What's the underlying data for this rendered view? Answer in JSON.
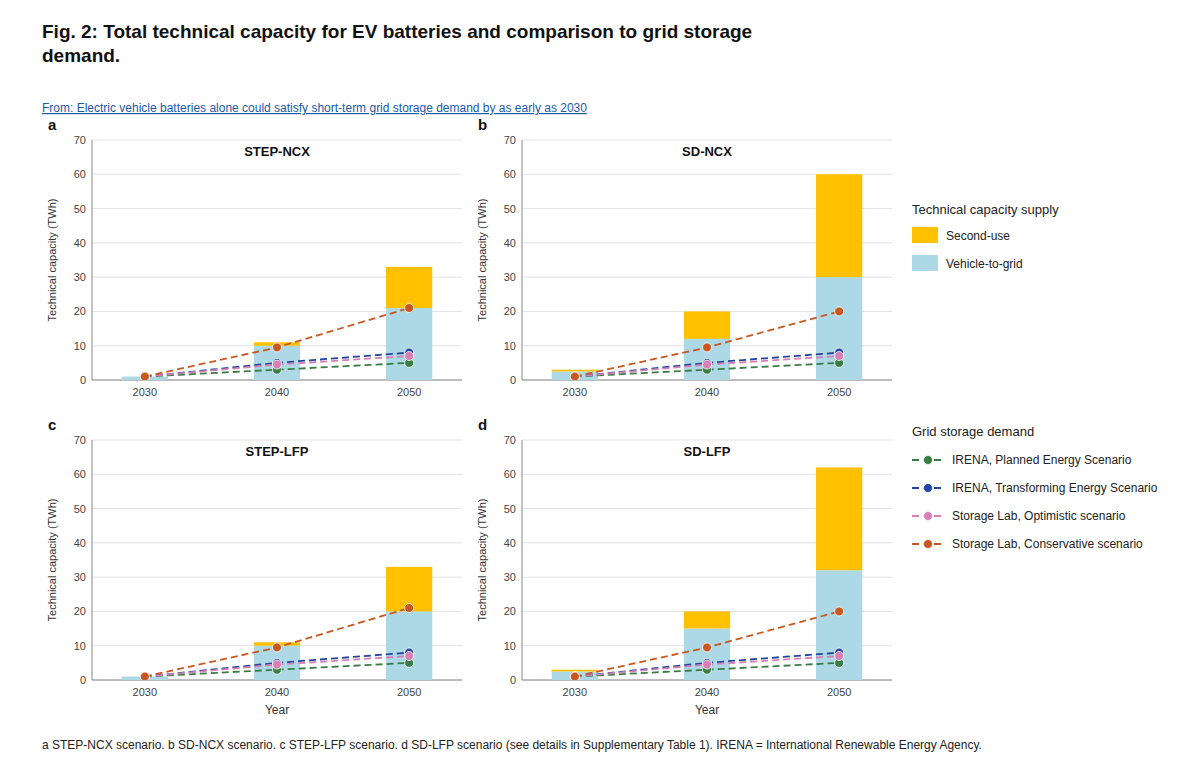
{
  "title": "Fig. 2: Total technical capacity for EV batteries and comparison to grid storage\ndemand.",
  "subtitle": "From: Electric vehicle batteries alone could satisfy short-term grid storage demand by as early as 2030",
  "annotations": [
    "Technical capacity supply",
    "Grid storage demand",
    "a STEP-NCX scenario. b SD-NCX scenario. c STEP-LFP scenario. d SD-LFP scenario (see details in Supplementary Table 1). IRENA = International Renewable Energy Agency."
  ],
  "chart_data": [
    {
      "type": "bar",
      "title": "STEP-NCX",
      "annotations": [
        "a"
      ],
      "stacked": true,
      "grid": true,
      "y_label": "Technical capacity (TWh)",
      "x": [
        2030,
        2040,
        2050
      ],
      "xlim": [
        2026,
        2054
      ],
      "xticks": [
        2030,
        2040,
        2050
      ],
      "ylim": [
        0,
        70
      ],
      "yticks": [
        0,
        10,
        20,
        30,
        40,
        50,
        60,
        70
      ],
      "series": [
        {
          "name": "Vehicle-to-grid",
          "type": "bar",
          "color": "#ADD8E6",
          "values": [
            1.0,
            10.0,
            21.0
          ]
        },
        {
          "name": "Second-use",
          "type": "bar",
          "color": "#FFC000",
          "values": [
            0.0,
            1.0,
            12.0
          ]
        },
        {
          "name": "IRENA, Planned Energy Scenario",
          "type": "line",
          "line_style": "dashed",
          "marker": "circle",
          "color": "#3A7D44",
          "values": [
            1.0,
            3.0,
            5.0
          ]
        },
        {
          "name": "IRENA, Transforming Energy Scenario",
          "type": "line",
          "line_style": "dashed",
          "marker": "circle",
          "color": "#2145A0",
          "values": [
            1.0,
            5.0,
            8.0
          ]
        },
        {
          "name": "Storage Lab, Optimistic scenario",
          "type": "line",
          "line_style": "dashed",
          "marker": "circle",
          "color": "#D87FB5",
          "values": [
            1.0,
            4.5,
            7.0
          ]
        },
        {
          "name": "Storage Lab, Conservative scenario",
          "type": "line",
          "line_style": "dashed",
          "marker": "circle",
          "color": "#C85820",
          "values": [
            1.0,
            9.5,
            21.0
          ]
        }
      ]
    },
    {
      "type": "bar",
      "title": "SD-NCX",
      "annotations": [
        "b"
      ],
      "stacked": true,
      "grid": true,
      "y_label": "Technical capacity (TWh)",
      "x": [
        2030,
        2040,
        2050
      ],
      "xlim": [
        2026,
        2054
      ],
      "xticks": [
        2030,
        2040,
        2050
      ],
      "ylim": [
        0,
        70
      ],
      "yticks": [
        0,
        10,
        20,
        30,
        40,
        50,
        60,
        70
      ],
      "series": [
        {
          "type": "bar",
          "color": "#ADD8E6",
          "values": [
            2.5,
            12.0,
            30.0
          ]
        },
        {
          "type": "bar",
          "color": "#FFC000",
          "values": [
            0.5,
            8.0,
            30.0
          ]
        },
        {
          "type": "line",
          "line_style": "dashed",
          "marker": "circle",
          "color": "#3A7D44",
          "values": [
            1.0,
            3.0,
            5.0
          ]
        },
        {
          "type": "line",
          "line_style": "dashed",
          "marker": "circle",
          "color": "#2145A0",
          "values": [
            1.0,
            5.0,
            8.0
          ]
        },
        {
          "type": "line",
          "line_style": "dashed",
          "marker": "circle",
          "color": "#D87FB5",
          "values": [
            1.0,
            4.5,
            7.0
          ]
        },
        {
          "type": "line",
          "line_style": "dashed",
          "marker": "circle",
          "color": "#C85820",
          "values": [
            1.0,
            9.5,
            20.0
          ]
        }
      ]
    },
    {
      "type": "bar",
      "title": "STEP-LFP",
      "annotations": [
        "c"
      ],
      "stacked": true,
      "grid": true,
      "y_label": "Technical capacity (TWh)",
      "x_label": "Year",
      "x": [
        2030,
        2040,
        2050
      ],
      "xlim": [
        2026,
        2054
      ],
      "xticks": [
        2030,
        2040,
        2050
      ],
      "ylim": [
        0,
        70
      ],
      "yticks": [
        0,
        10,
        20,
        30,
        40,
        50,
        60,
        70
      ],
      "series": [
        {
          "type": "bar",
          "color": "#ADD8E6",
          "values": [
            1.0,
            10.0,
            20.0
          ]
        },
        {
          "type": "bar",
          "color": "#FFC000",
          "values": [
            0.0,
            1.0,
            13.0
          ]
        },
        {
          "type": "line",
          "line_style": "dashed",
          "marker": "circle",
          "color": "#3A7D44",
          "values": [
            1.0,
            3.0,
            5.0
          ]
        },
        {
          "type": "line",
          "line_style": "dashed",
          "marker": "circle",
          "color": "#2145A0",
          "values": [
            1.0,
            5.0,
            8.0
          ]
        },
        {
          "type": "line",
          "line_style": "dashed",
          "marker": "circle",
          "color": "#D87FB5",
          "values": [
            1.0,
            4.5,
            7.0
          ]
        },
        {
          "type": "line",
          "line_style": "dashed",
          "marker": "circle",
          "color": "#C85820",
          "values": [
            1.0,
            9.5,
            21.0
          ]
        }
      ]
    },
    {
      "type": "bar",
      "title": "SD-LFP",
      "annotations": [
        "d"
      ],
      "stacked": true,
      "grid": true,
      "y_label": "Technical capacity (TWh)",
      "x_label": "Year",
      "x": [
        2030,
        2040,
        2050
      ],
      "xlim": [
        2026,
        2054
      ],
      "xticks": [
        2030,
        2040,
        2050
      ],
      "ylim": [
        0,
        70
      ],
      "yticks": [
        0,
        10,
        20,
        30,
        40,
        50,
        60,
        70
      ],
      "series": [
        {
          "type": "bar",
          "color": "#ADD8E6",
          "values": [
            2.5,
            15.0,
            32.0
          ]
        },
        {
          "type": "bar",
          "color": "#FFC000",
          "values": [
            0.5,
            5.0,
            30.0
          ]
        },
        {
          "type": "line",
          "line_style": "dashed",
          "marker": "circle",
          "color": "#3A7D44",
          "values": [
            1.0,
            3.0,
            5.0
          ]
        },
        {
          "type": "line",
          "line_style": "dashed",
          "marker": "circle",
          "color": "#2145A0",
          "values": [
            1.0,
            5.0,
            8.0
          ]
        },
        {
          "type": "line",
          "line_style": "dashed",
          "marker": "circle",
          "color": "#D87FB5",
          "values": [
            1.0,
            4.5,
            7.0
          ]
        },
        {
          "type": "line",
          "line_style": "dashed",
          "marker": "circle",
          "color": "#C85820",
          "values": [
            1.0,
            9.5,
            20.0
          ]
        }
      ]
    }
  ]
}
